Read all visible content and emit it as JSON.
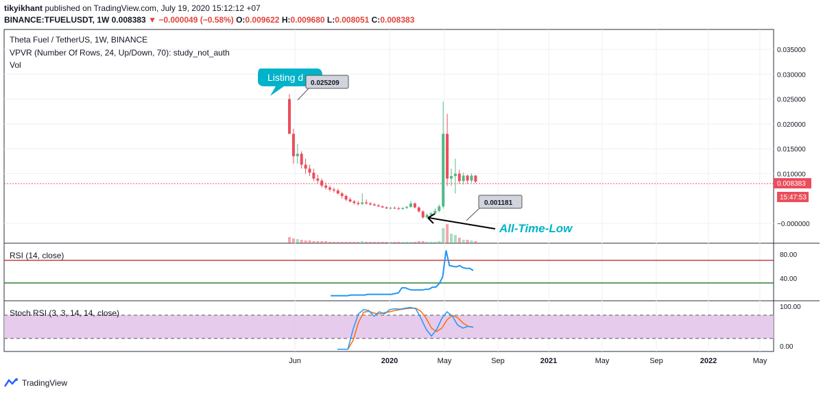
{
  "header": {
    "author": "tikyikhant",
    "published": "published on TradingView.com, July 19, 2020 15:12:12 +07",
    "symbol": "BINANCE:TFUELUSDT, 1W",
    "last": "0.008383",
    "change": "−0.000049 (−0.58%)",
    "o_label": "O:",
    "o": "0.009622",
    "h_label": "H:",
    "h": "0.009680",
    "l_label": "L:",
    "l": "0.008051",
    "c_label": "C:",
    "c": "0.008383"
  },
  "legend": {
    "title": "Theta Fuel / TetherUS, 1W, BINANCE",
    "vpvr": "VPVR (Number Of Rows, 24, Up/Down, 70): study_not_auth",
    "vol": "Vol"
  },
  "annotations": {
    "listing": "Listing d",
    "high_value": "0.025209",
    "low_value": "0.001181",
    "atl": "All-Time-Low",
    "price_badge": "0.008383",
    "timer_badge": "15:47:53"
  },
  "price_axis": [
    "0.035000",
    "0.030000",
    "0.025000",
    "0.020000",
    "0.015000",
    "0.010000",
    "−0.000000"
  ],
  "rsi": {
    "label": "RSI (14, close)",
    "ticks": [
      "80.00",
      "40.00"
    ]
  },
  "stoch": {
    "label": "Stoch RSI (3, 3, 14, 14, close)",
    "ticks": [
      "100.00",
      "0.00"
    ]
  },
  "time_axis": [
    "Jun",
    "2020",
    "May",
    "Sep",
    "2021",
    "May",
    "Sep",
    "2022",
    "May"
  ],
  "footer": {
    "brand": "TradingView"
  },
  "colors": {
    "up": "#53b987",
    "down": "#eb4d5c",
    "rsi": "#2196f3",
    "stoch_k": "#2196f3",
    "stoch_d": "#ff6d00",
    "band": "#e1bee7",
    "annotation": "#00b3c8"
  },
  "chart_data": [
    {
      "type": "candlestick",
      "title": "Theta Fuel / TetherUS, 1W, BINANCE",
      "interval": "1W",
      "ylim": [
        -0.004,
        0.039
      ],
      "candles": [
        {
          "o": 0.025,
          "h": 0.026,
          "l": 0.018,
          "c": 0.018
        },
        {
          "o": 0.018,
          "h": 0.019,
          "l": 0.012,
          "c": 0.0135
        },
        {
          "o": 0.0135,
          "h": 0.016,
          "l": 0.012,
          "c": 0.014
        },
        {
          "o": 0.014,
          "h": 0.0145,
          "l": 0.011,
          "c": 0.0118
        },
        {
          "o": 0.0118,
          "h": 0.013,
          "l": 0.01,
          "c": 0.011
        },
        {
          "o": 0.011,
          "h": 0.0118,
          "l": 0.0095,
          "c": 0.0102
        },
        {
          "o": 0.0102,
          "h": 0.011,
          "l": 0.0085,
          "c": 0.009
        },
        {
          "o": 0.009,
          "h": 0.0098,
          "l": 0.008,
          "c": 0.0086
        },
        {
          "o": 0.0086,
          "h": 0.009,
          "l": 0.0072,
          "c": 0.0076
        },
        {
          "o": 0.0076,
          "h": 0.0082,
          "l": 0.0068,
          "c": 0.0072
        },
        {
          "o": 0.0072,
          "h": 0.0076,
          "l": 0.0064,
          "c": 0.0068
        },
        {
          "o": 0.0068,
          "h": 0.0072,
          "l": 0.0062,
          "c": 0.0066
        },
        {
          "o": 0.0066,
          "h": 0.007,
          "l": 0.0058,
          "c": 0.006
        },
        {
          "o": 0.006,
          "h": 0.0063,
          "l": 0.005,
          "c": 0.0055
        },
        {
          "o": 0.0055,
          "h": 0.0058,
          "l": 0.0045,
          "c": 0.0048
        },
        {
          "o": 0.0048,
          "h": 0.0052,
          "l": 0.0042,
          "c": 0.0044
        },
        {
          "o": 0.0044,
          "h": 0.0047,
          "l": 0.0038,
          "c": 0.0041
        },
        {
          "o": 0.0041,
          "h": 0.0045,
          "l": 0.0036,
          "c": 0.0039
        },
        {
          "o": 0.0039,
          "h": 0.006,
          "l": 0.0037,
          "c": 0.0042
        },
        {
          "o": 0.0042,
          "h": 0.0048,
          "l": 0.0038,
          "c": 0.004
        },
        {
          "o": 0.004,
          "h": 0.0043,
          "l": 0.0036,
          "c": 0.0038
        },
        {
          "o": 0.0038,
          "h": 0.0041,
          "l": 0.0035,
          "c": 0.0036
        },
        {
          "o": 0.0036,
          "h": 0.0039,
          "l": 0.0033,
          "c": 0.0034
        },
        {
          "o": 0.0034,
          "h": 0.0036,
          "l": 0.0031,
          "c": 0.0032
        },
        {
          "o": 0.0032,
          "h": 0.0034,
          "l": 0.0029,
          "c": 0.003
        },
        {
          "o": 0.003,
          "h": 0.0033,
          "l": 0.0028,
          "c": 0.0031
        },
        {
          "o": 0.0031,
          "h": 0.0034,
          "l": 0.0029,
          "c": 0.003
        },
        {
          "o": 0.003,
          "h": 0.0033,
          "l": 0.0027,
          "c": 0.0029
        },
        {
          "o": 0.0029,
          "h": 0.0032,
          "l": 0.0027,
          "c": 0.0031
        },
        {
          "o": 0.0031,
          "h": 0.0035,
          "l": 0.0029,
          "c": 0.0033
        },
        {
          "o": 0.0033,
          "h": 0.0045,
          "l": 0.0031,
          "c": 0.004
        },
        {
          "o": 0.004,
          "h": 0.0042,
          "l": 0.003,
          "c": 0.0032
        },
        {
          "o": 0.0032,
          "h": 0.0034,
          "l": 0.0022,
          "c": 0.0024
        },
        {
          "o": 0.0024,
          "h": 0.0026,
          "l": 0.0009,
          "c": 0.0012
        },
        {
          "o": 0.0012,
          "h": 0.002,
          "l": 0.001,
          "c": 0.0017
        },
        {
          "o": 0.0017,
          "h": 0.0022,
          "l": 0.0015,
          "c": 0.002
        },
        {
          "o": 0.002,
          "h": 0.003,
          "l": 0.0018,
          "c": 0.0025
        },
        {
          "o": 0.0025,
          "h": 0.0038,
          "l": 0.0022,
          "c": 0.0034
        },
        {
          "o": 0.0034,
          "h": 0.0245,
          "l": 0.003,
          "c": 0.018
        },
        {
          "o": 0.018,
          "h": 0.022,
          "l": 0.0075,
          "c": 0.009
        },
        {
          "o": 0.009,
          "h": 0.011,
          "l": 0.0075,
          "c": 0.0095
        },
        {
          "o": 0.0095,
          "h": 0.013,
          "l": 0.006,
          "c": 0.01
        },
        {
          "o": 0.01,
          "h": 0.0108,
          "l": 0.008,
          "c": 0.0085
        },
        {
          "o": 0.0085,
          "h": 0.0102,
          "l": 0.0078,
          "c": 0.0096
        },
        {
          "o": 0.0096,
          "h": 0.0098,
          "l": 0.008,
          "c": 0.0086
        },
        {
          "o": 0.0086,
          "h": 0.01,
          "l": 0.0082,
          "c": 0.0096
        },
        {
          "o": 0.0096,
          "h": 0.0097,
          "l": 0.0081,
          "c": 0.0084
        }
      ],
      "volume": [
        9,
        7,
        6,
        5,
        4,
        4,
        3,
        3,
        3,
        3,
        2,
        2,
        2,
        2,
        2,
        2,
        2,
        2,
        3,
        2,
        2,
        2,
        2,
        2,
        2,
        2,
        2,
        2,
        2,
        2,
        2,
        2,
        3,
        3,
        2,
        2,
        2,
        3,
        22,
        28,
        14,
        12,
        8,
        5,
        5,
        4,
        3
      ]
    },
    {
      "type": "line",
      "title": "RSI (14, close)",
      "ylim": [
        18,
        98
      ],
      "values": [
        25,
        25,
        25,
        25,
        25,
        25,
        26,
        26,
        26,
        26,
        26,
        27,
        27,
        27,
        27,
        27,
        27,
        27,
        27,
        28,
        29,
        36,
        36,
        34,
        33,
        33,
        33,
        33,
        34,
        34,
        37,
        37,
        42,
        51,
        88,
        67,
        66,
        65,
        67,
        64,
        63,
        63,
        60
      ]
    },
    {
      "type": "line",
      "title": "Stoch RSI (3, 3, 14, 14, close)",
      "ylim": [
        -5,
        110
      ],
      "k": [
        0,
        0,
        0,
        45,
        80,
        90,
        88,
        75,
        85,
        80,
        90,
        92,
        91,
        93,
        95,
        92,
        70,
        45,
        30,
        45,
        70,
        85,
        75,
        55,
        48,
        52,
        50
      ],
      "d": [
        0,
        0,
        0,
        20,
        60,
        84,
        86,
        82,
        80,
        83,
        85,
        88,
        90,
        92,
        93,
        93,
        86,
        70,
        48,
        40,
        48,
        67,
        77,
        72,
        60,
        52,
        50
      ]
    }
  ]
}
